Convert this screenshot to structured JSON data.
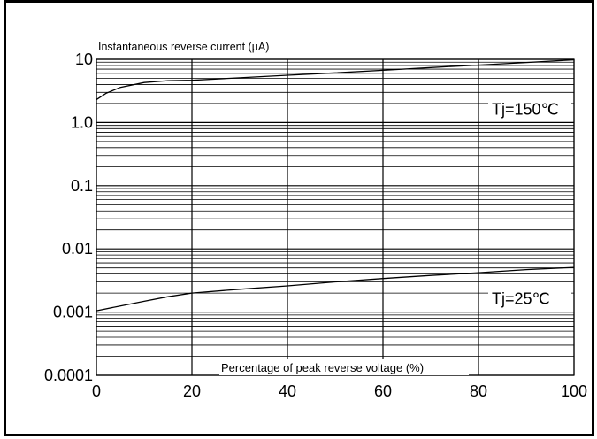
{
  "chart_data": {
    "type": "line",
    "ylabel": "Instantaneous reverse current (µA)",
    "xlabel": "Percentage of peak reverse voltage (%)",
    "x_scale": "linear",
    "y_scale": "log",
    "xlim": [
      0,
      100
    ],
    "ylim": [
      0.0001,
      10
    ],
    "grid": true,
    "x_ticks": [
      "0",
      "20",
      "40",
      "60",
      "80",
      "100"
    ],
    "y_ticks": [
      {
        "value": 10,
        "label": "10"
      },
      {
        "value": 1,
        "label": "1.0"
      },
      {
        "value": 0.1,
        "label": "0.1"
      },
      {
        "value": 0.01,
        "label": "0.01"
      },
      {
        "value": 0.001,
        "label": "0.001"
      },
      {
        "value": 0.0001,
        "label": "0.0001"
      }
    ],
    "series": [
      {
        "name": "Tj=150℃",
        "x": [
          0,
          2,
          5,
          10,
          15,
          20,
          30,
          40,
          50,
          60,
          70,
          80,
          90,
          100
        ],
        "y": [
          2.3,
          2.9,
          3.6,
          4.3,
          4.6,
          4.65,
          5.1,
          5.6,
          6.1,
          6.7,
          7.4,
          8.1,
          8.9,
          9.8
        ]
      },
      {
        "name": "Tj=25℃",
        "x": [
          0,
          5,
          10,
          15,
          20,
          30,
          40,
          50,
          60,
          70,
          80,
          90,
          100
        ],
        "y": [
          0.00105,
          0.00125,
          0.00148,
          0.00175,
          0.002,
          0.0023,
          0.0026,
          0.003,
          0.0034,
          0.0038,
          0.0042,
          0.0047,
          0.0051
        ]
      }
    ]
  }
}
